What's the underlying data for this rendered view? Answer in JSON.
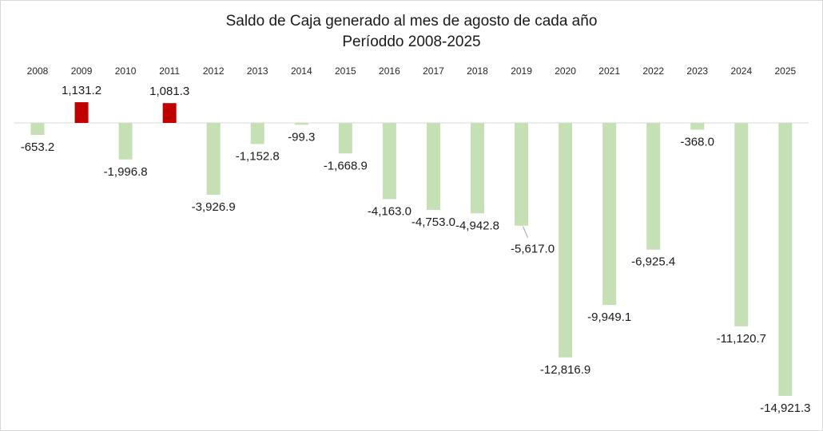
{
  "chart_data": {
    "type": "bar",
    "title_lines": [
      "Saldo de Caja generado al mes de agosto de cada año",
      "Períoddo 2008-2025"
    ],
    "xlabel": "",
    "ylabel": "",
    "categories": [
      "2008",
      "2009",
      "2010",
      "2011",
      "2012",
      "2013",
      "2014",
      "2015",
      "2016",
      "2017",
      "2018",
      "2019",
      "2020",
      "2021",
      "2022",
      "2023",
      "2024",
      "2025"
    ],
    "values": [
      -653.2,
      1131.2,
      -1996.8,
      1081.3,
      -3926.9,
      -1152.8,
      -99.3,
      -1668.9,
      -4163.0,
      -4753.0,
      -4942.8,
      -5617.0,
      -12816.9,
      -9949.1,
      -6925.4,
      -368.0,
      -11120.7,
      -14921.3
    ],
    "data_labels": [
      "-653.2",
      "1,131.2",
      "-1,996.8",
      "1,081.3",
      "-3,926.9",
      "-1,152.8",
      "-99.3",
      "-1,668.9",
      "-4,163.0",
      "-4,753.0",
      "-4,942.8",
      "-5,617.0",
      "-12,816.9",
      "-9,949.1",
      "-6,925.4",
      "-368.0",
      "-11,120.7",
      "-14,921.3"
    ],
    "ylim": [
      -15500,
      1500
    ],
    "grid": false,
    "legend": "none",
    "colors": {
      "positive": "#c00000",
      "negative": "#c5e0b4",
      "axis": "#d9d9d9",
      "leader": "#a6a6a6"
    }
  }
}
